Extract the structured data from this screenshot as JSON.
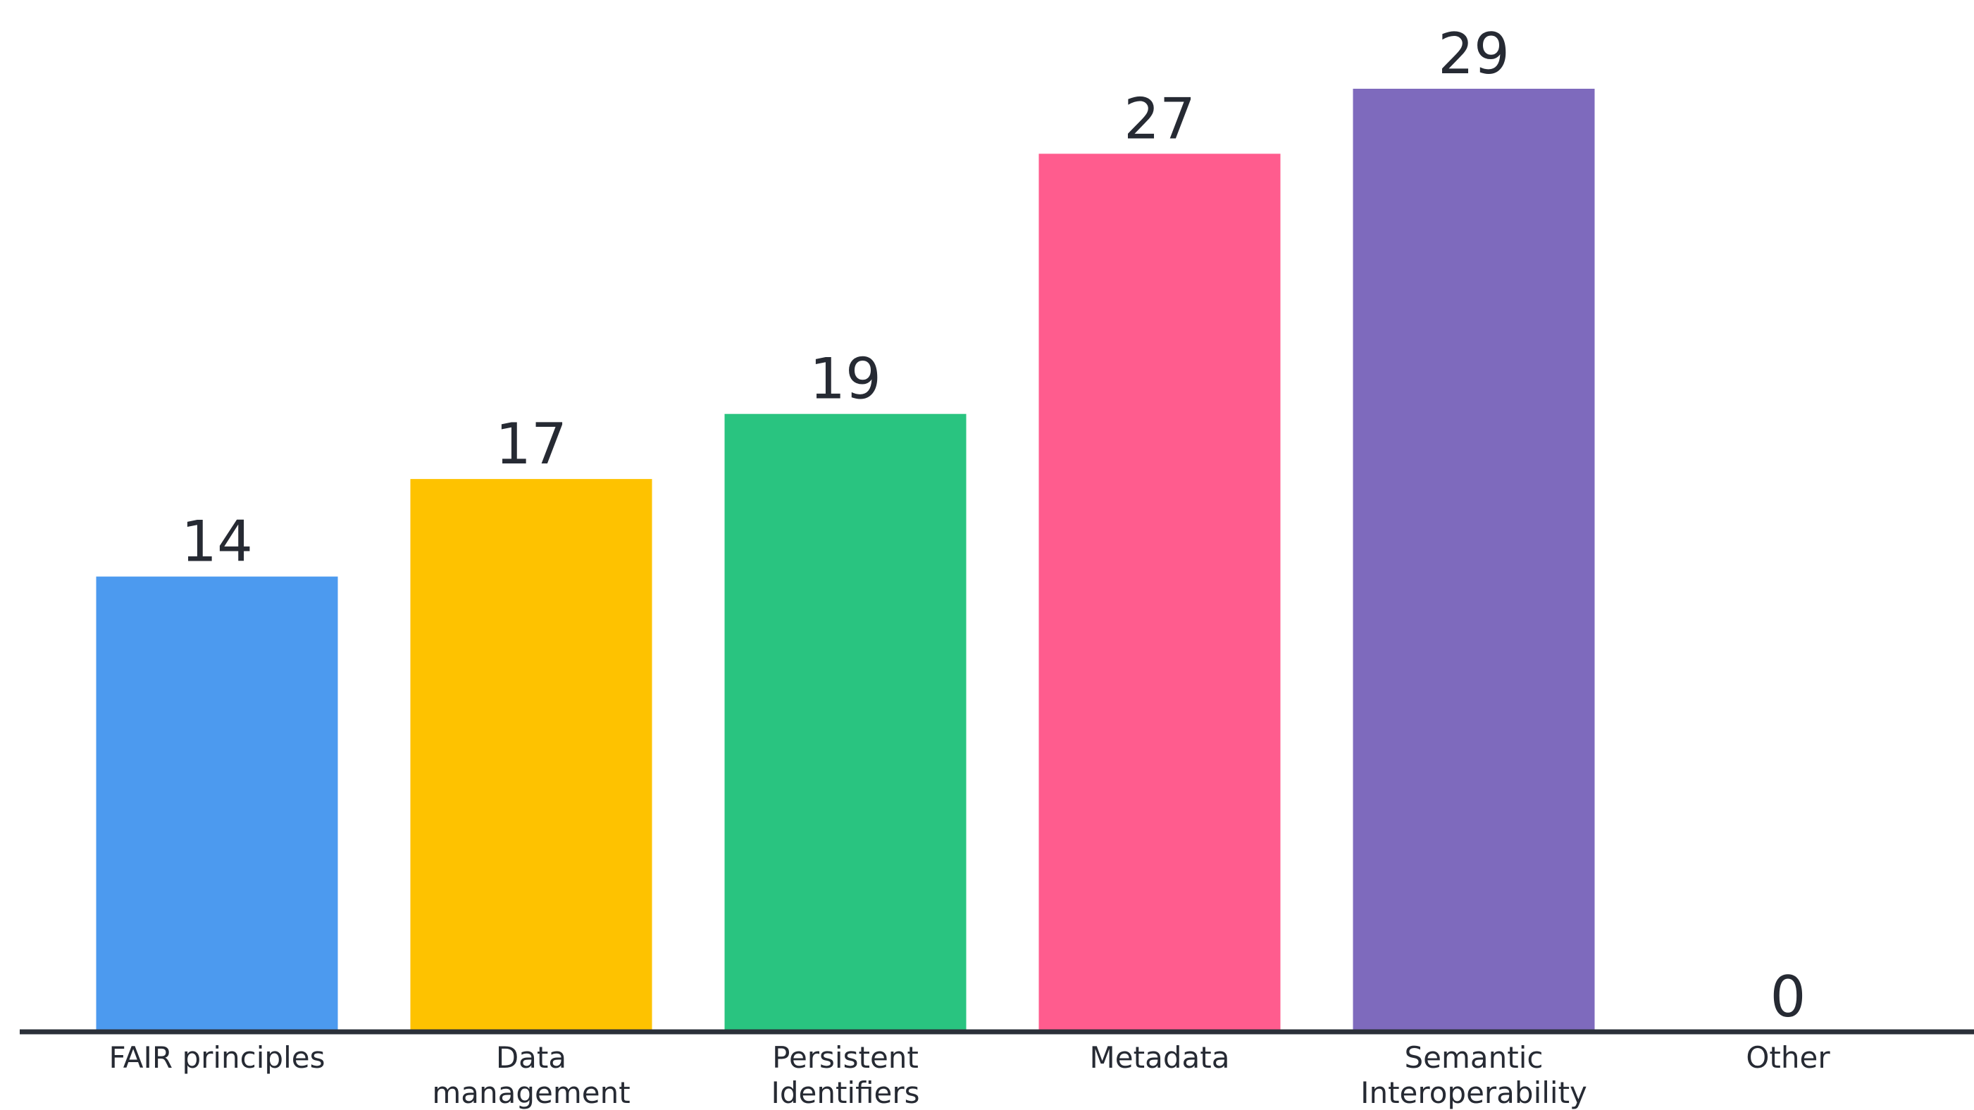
{
  "chart_data": {
    "type": "bar",
    "title": "",
    "xlabel": "",
    "ylabel": "",
    "categories": [
      "FAIR principles",
      "Data management",
      "Persistent Identifiers",
      "Metadata",
      "Semantic Interoperability",
      "Other"
    ],
    "category_lines": [
      [
        "FAIR principles"
      ],
      [
        "Data",
        "management"
      ],
      [
        "Persistent",
        "Identifiers"
      ],
      [
        "Metadata"
      ],
      [
        "Semantic",
        "Interoperability"
      ],
      [
        "Other"
      ]
    ],
    "values": [
      14,
      17,
      19,
      27,
      29,
      0
    ],
    "colors": [
      "#4c9aef",
      "#fec200",
      "#29c480",
      "#ff5c8e",
      "#7e6abd",
      "#cccccc"
    ],
    "ylim": [
      0,
      29
    ],
    "grid": false,
    "legend": "none",
    "axis_color": "#2b3039",
    "text_color": "#262a33"
  }
}
